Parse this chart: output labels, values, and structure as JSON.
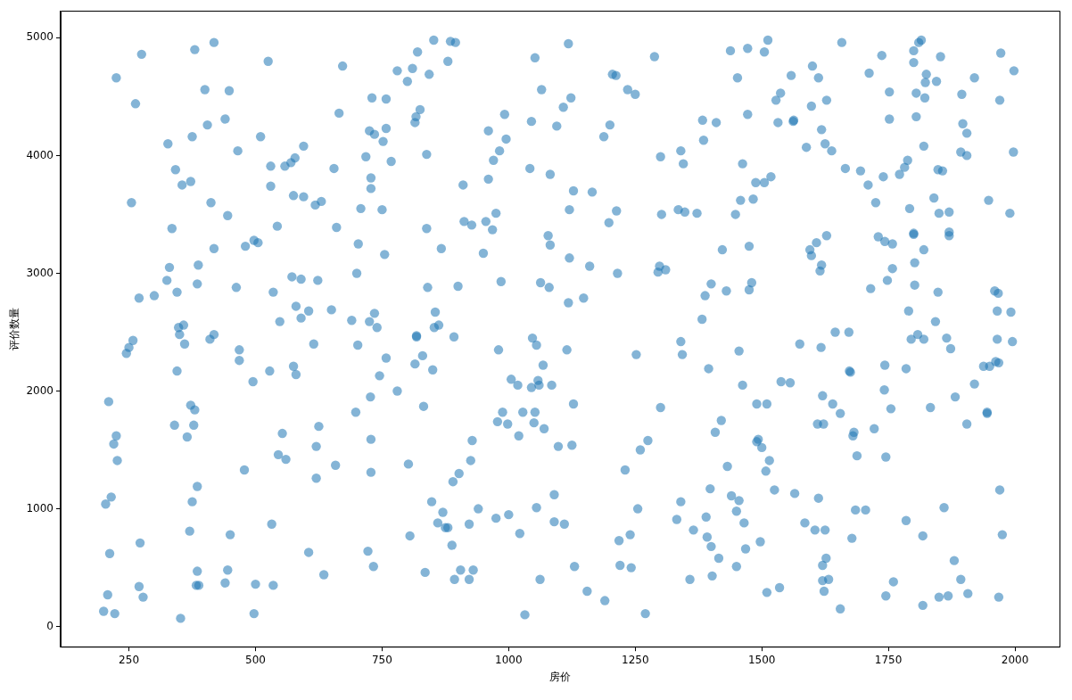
{
  "chart_data": {
    "type": "scatter",
    "xlabel": "房价",
    "ylabel": "评价数量",
    "color": "#1f77b4",
    "marker": "circle",
    "grid": false,
    "legend": false,
    "xlim": [
      115,
      2088
    ],
    "ylim": [
      -171,
      5230
    ],
    "xticks": [
      250,
      500,
      750,
      1000,
      1250,
      1500,
      1750,
      2000
    ],
    "yticks": [
      0,
      1000,
      2000,
      3000,
      4000,
      5000
    ],
    "x": [
      204,
      210,
      212,
      208,
      200,
      215,
      220,
      225,
      227,
      222,
      225,
      245,
      250,
      255,
      258,
      263,
      270,
      270,
      272,
      275,
      278,
      300,
      325,
      327,
      330,
      335,
      340,
      342,
      345,
      345,
      348,
      350,
      352,
      355,
      358,
      360,
      365,
      370,
      372,
      372,
      375,
      375,
      378,
      380,
      380,
      383,
      385,
      385,
      385,
      387,
      388,
      400,
      405,
      410,
      412,
      418,
      418,
      418,
      440,
      440,
      445,
      445,
      448,
      450,
      462,
      465,
      468,
      468,
      478,
      480,
      495,
      497,
      497,
      500,
      505,
      510,
      525,
      528,
      530,
      530,
      532,
      535,
      535,
      543,
      545,
      548,
      553,
      558,
      560,
      570,
      572,
      575,
      575,
      578,
      580,
      580,
      590,
      590,
      595,
      595,
      605,
      605,
      615,
      618,
      620,
      620,
      623,
      625,
      630,
      635,
      650,
      655,
      658,
      660,
      665,
      672,
      690,
      698,
      700,
      702,
      703,
      708,
      718,
      722,
      725,
      725,
      727,
      728,
      728,
      728,
      728,
      730,
      733,
      735,
      735,
      740,
      745,
      750,
      752,
      755,
      758,
      758,
      758,
      768,
      780,
      780,
      800,
      802,
      805,
      810,
      815,
      815,
      817,
      818,
      818,
      820,
      825,
      830,
      832,
      835,
      838,
      838,
      840,
      843,
      848,
      850,
      852,
      853,
      855,
      860,
      862,
      867,
      870,
      875,
      880,
      880,
      885,
      888,
      890,
      892,
      893,
      895,
      900,
      902,
      905,
      910,
      912,
      922,
      922,
      925,
      927,
      928,
      930,
      940,
      950,
      955,
      960,
      960,
      968,
      970,
      975,
      975,
      978,
      980,
      982,
      985,
      988,
      992,
      995,
      998,
      1000,
      1005,
      1018,
      1020,
      1022,
      1028,
      1032,
      1042,
      1045,
      1045,
      1047,
      1050,
      1052,
      1052,
      1055,
      1055,
      1058,
      1060,
      1062,
      1063,
      1065,
      1068,
      1070,
      1078,
      1080,
      1082,
      1082,
      1085,
      1090,
      1090,
      1095,
      1098,
      1108,
      1110,
      1115,
      1118,
      1118,
      1120,
      1120,
      1123,
      1125,
      1128,
      1128,
      1130,
      1148,
      1155,
      1160,
      1165,
      1188,
      1190,
      1198,
      1200,
      1205,
      1212,
      1213,
      1215,
      1218,
      1220,
      1230,
      1235,
      1240,
      1242,
      1250,
      1252,
      1255,
      1260,
      1270,
      1275,
      1288,
      1295,
      1298,
      1300,
      1300,
      1302,
      1310,
      1332,
      1335,
      1340,
      1340,
      1340,
      1343,
      1345,
      1348,
      1358,
      1365,
      1372,
      1382,
      1383,
      1385,
      1388,
      1390,
      1392,
      1395,
      1398,
      1400,
      1400,
      1402,
      1408,
      1410,
      1415,
      1420,
      1422,
      1430,
      1432,
      1438,
      1440,
      1448,
      1450,
      1450,
      1452,
      1455,
      1455,
      1458,
      1462,
      1462,
      1465,
      1468,
      1472,
      1472,
      1475,
      1475,
      1480,
      1483,
      1488,
      1490,
      1490,
      1493,
      1497,
      1500,
      1505,
      1505,
      1508,
      1510,
      1510,
      1512,
      1515,
      1518,
      1525,
      1528,
      1532,
      1537,
      1535,
      1538,
      1556,
      1558,
      1562,
      1563,
      1565,
      1575,
      1585,
      1588,
      1595,
      1598,
      1598,
      1600,
      1605,
      1608,
      1610,
      1612,
      1612,
      1615,
      1617,
      1618,
      1618,
      1620,
      1620,
      1620,
      1623,
      1622,
      1625,
      1625,
      1627,
      1628,
      1628,
      1632,
      1638,
      1640,
      1645,
      1655,
      1655,
      1658,
      1665,
      1672,
      1673,
      1675,
      1678,
      1680,
      1682,
      1685,
      1688,
      1695,
      1705,
      1710,
      1712,
      1715,
      1722,
      1725,
      1730,
      1737,
      1740,
      1742,
      1743,
      1743,
      1745,
      1745,
      1748,
      1752,
      1752,
      1755,
      1758,
      1758,
      1760,
      1772,
      1782,
      1785,
      1785,
      1788,
      1790,
      1792,
      1795,
      1800,
      1800,
      1800,
      1800,
      1802,
      1802,
      1805,
      1805,
      1808,
      1810,
      1815,
      1818,
      1818,
      1820,
      1820,
      1820,
      1822,
      1823,
      1825,
      1833,
      1840,
      1843,
      1845,
      1848,
      1848,
      1850,
      1850,
      1853,
      1857,
      1860,
      1865,
      1868,
      1870,
      1870,
      1870,
      1873,
      1880,
      1882,
      1893,
      1893,
      1895,
      1897,
      1905,
      1905,
      1905,
      1907,
      1920,
      1920,
      1938,
      1945,
      1945,
      1948,
      1950,
      1960,
      1962,
      1965,
      1965,
      1967,
      1968,
      1968,
      1970,
      1970,
      1972,
      1975,
      1990,
      1992,
      1995,
      1997,
      1998
    ],
    "values": [
      1040,
      1910,
      620,
      270,
      130,
      1100,
      1550,
      1620,
      1410,
      110,
      4660,
      2320,
      2370,
      3600,
      2430,
      4440,
      340,
      2790,
      710,
      4860,
      250,
      2810,
      2940,
      4100,
      3050,
      3380,
      1710,
      3880,
      2170,
      2840,
      2540,
      2480,
      70,
      3750,
      2560,
      2400,
      1610,
      810,
      3780,
      1880,
      4160,
      1060,
      1710,
      1840,
      4900,
      350,
      2910,
      470,
      1190,
      3070,
      350,
      4560,
      4260,
      2440,
      3600,
      2480,
      3210,
      4960,
      4310,
      370,
      480,
      3490,
      4550,
      780,
      2880,
      4040,
      2350,
      2260,
      1330,
      3230,
      2080,
      110,
      3280,
      360,
      3260,
      4160,
      4800,
      2170,
      3910,
      3740,
      870,
      350,
      2840,
      3400,
      1460,
      2590,
      1640,
      3910,
      1420,
      3940,
      2970,
      3660,
      2210,
      3980,
      2720,
      2140,
      2620,
      2950,
      3650,
      4080,
      2680,
      630,
      2400,
      3580,
      1530,
      1260,
      2940,
      1700,
      3610,
      440,
      2690,
      3890,
      1370,
      3390,
      4360,
      4760,
      2600,
      1820,
      3000,
      2390,
      3250,
      3550,
      3990,
      640,
      2590,
      4210,
      1950,
      3810,
      3720,
      1590,
      1310,
      4490,
      510,
      4180,
      2660,
      2540,
      2130,
      3540,
      4120,
      3160,
      4480,
      4230,
      2280,
      3950,
      2000,
      4720,
      4630,
      1380,
      770,
      4740,
      4280,
      2230,
      4330,
      2460,
      2470,
      4880,
      4390,
      2300,
      1870,
      460,
      4010,
      3380,
      2880,
      4690,
      1060,
      2180,
      4980,
      2540,
      2670,
      880,
      2560,
      3210,
      970,
      840,
      840,
      4800,
      4970,
      690,
      1230,
      2460,
      400,
      4960,
      2890,
      1300,
      480,
      3750,
      3440,
      870,
      400,
      1410,
      3410,
      1580,
      480,
      1000,
      3170,
      3440,
      4210,
      3800,
      3370,
      3960,
      3510,
      920,
      1740,
      2350,
      4040,
      2930,
      1820,
      4350,
      4140,
      1720,
      950,
      2100,
      2050,
      1620,
      790,
      1820,
      100,
      3890,
      2030,
      4290,
      2450,
      1730,
      1820,
      4830,
      2390,
      1010,
      2090,
      2050,
      400,
      2920,
      4560,
      2220,
      1680,
      3320,
      2880,
      3840,
      3240,
      2050,
      1120,
      890,
      4250,
      1530,
      4410,
      870,
      2350,
      4950,
      2750,
      3130,
      3540,
      4490,
      1540,
      3700,
      1890,
      510,
      2790,
      300,
      3060,
      3690,
      4160,
      220,
      3430,
      4260,
      4690,
      4680,
      3530,
      3000,
      730,
      520,
      1330,
      4560,
      780,
      500,
      4520,
      2310,
      1000,
      1500,
      110,
      1580,
      4840,
      3010,
      3060,
      3990,
      1860,
      3500,
      3030,
      910,
      3540,
      4040,
      2420,
      1060,
      2310,
      3930,
      3520,
      400,
      820,
      3510,
      2610,
      4300,
      4130,
      2810,
      930,
      760,
      2190,
      1170,
      680,
      2910,
      430,
      1650,
      4280,
      580,
      1750,
      3200,
      2850,
      1360,
      4890,
      1110,
      3500,
      980,
      510,
      4660,
      1070,
      2340,
      3620,
      3930,
      2050,
      880,
      660,
      4350,
      4910,
      2860,
      3230,
      2920,
      3630,
      3770,
      1890,
      1570,
      1590,
      720,
      1520,
      3770,
      4880,
      1320,
      290,
      1890,
      4980,
      1410,
      3820,
      1160,
      4470,
      4280,
      4530,
      330,
      2080,
      2070,
      4680,
      4290,
      4300,
      1130,
      2400,
      880,
      4070,
      3200,
      3150,
      4420,
      4760,
      820,
      3260,
      1720,
      4660,
      1090,
      3020,
      2370,
      3070,
      4220,
      1960,
      520,
      390,
      300,
      1720,
      4100,
      820,
      580,
      3320,
      4470,
      400,
      4040,
      1890,
      2500,
      1810,
      150,
      4960,
      3890,
      2500,
      2170,
      2160,
      750,
      1620,
      1650,
      990,
      1450,
      3870,
      990,
      3750,
      4700,
      2870,
      1680,
      3600,
      3310,
      4850,
      3820,
      2010,
      3270,
      2220,
      260,
      1440,
      2940,
      4540,
      4310,
      1850,
      3040,
      3250,
      380,
      3840,
      3900,
      2190,
      900,
      3960,
      2680,
      3550,
      2440,
      3340,
      3330,
      4890,
      4790,
      3090,
      2900,
      4530,
      4330,
      2480,
      4960,
      4980,
      770,
      180,
      4080,
      2440,
      3200,
      4490,
      4620,
      4690,
      1860,
      3640,
      2590,
      4630,
      3880,
      2840,
      250,
      3510,
      4840,
      3870,
      1010,
      2450,
      260,
      3520,
      3320,
      3350,
      2360,
      560,
      1950,
      4030,
      400,
      4520,
      4270,
      4000,
      1720,
      4190,
      280,
      4660,
      2060,
      2210,
      1810,
      1820,
      3620,
      2210,
      2850,
      2250,
      2680,
      2440,
      2830,
      250,
      2240,
      1160,
      4470,
      4870,
      780,
      3510,
      2670,
      2420,
      4030,
      4720
    ]
  }
}
